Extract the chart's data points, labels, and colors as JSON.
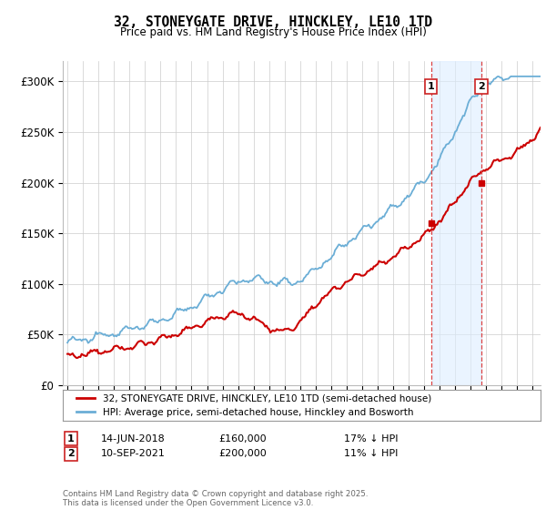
{
  "title": "32, STONEYGATE DRIVE, HINCKLEY, LE10 1TD",
  "subtitle": "Price paid vs. HM Land Registry's House Price Index (HPI)",
  "ylim": [
    0,
    320000
  ],
  "yticks": [
    0,
    50000,
    100000,
    150000,
    200000,
    250000,
    300000
  ],
  "ytick_labels": [
    "£0",
    "£50K",
    "£100K",
    "£150K",
    "£200K",
    "£250K",
    "£300K"
  ],
  "legend_line1": "32, STONEYGATE DRIVE, HINCKLEY, LE10 1TD (semi-detached house)",
  "legend_line2": "HPI: Average price, semi-detached house, Hinckley and Bosworth",
  "annotation1_label": "1",
  "annotation1_date": "14-JUN-2018",
  "annotation1_price": "£160,000",
  "annotation1_hpi": "17% ↓ HPI",
  "annotation1_year": 2018.45,
  "annotation1_value": 160000,
  "annotation2_label": "2",
  "annotation2_date": "10-SEP-2021",
  "annotation2_price": "£200,000",
  "annotation2_hpi": "11% ↓ HPI",
  "annotation2_year": 2021.69,
  "annotation2_value": 200000,
  "footer": "Contains HM Land Registry data © Crown copyright and database right 2025.\nThis data is licensed under the Open Government Licence v3.0.",
  "hpi_color": "#6baed6",
  "price_color": "#cc0000",
  "shaded_color": "#ddeeff",
  "vline_color": "#dd4444",
  "background_color": "#ffffff",
  "grid_color": "#cccccc",
  "xlim_left": 1994.7,
  "xlim_right": 2025.5
}
